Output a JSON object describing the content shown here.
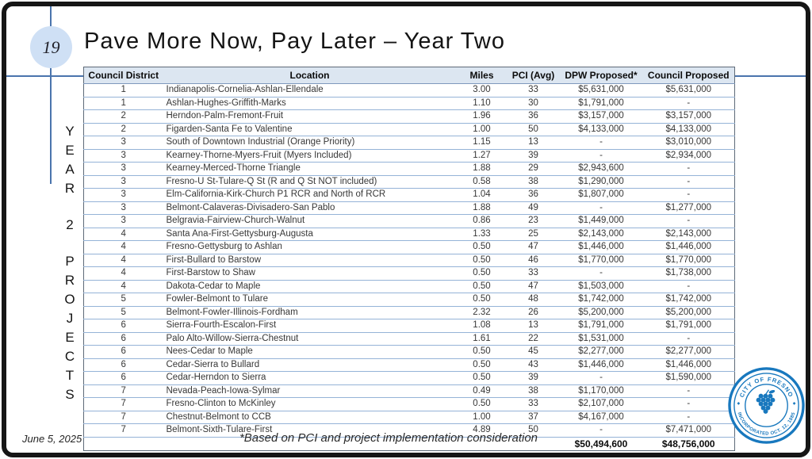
{
  "slide": {
    "page_number": "19",
    "title": "Pave More Now, Pay Later – Year Two",
    "side_label": "YEAR 2 PROJECTS",
    "side_letters": [
      "Y",
      "E",
      "A",
      "R",
      " ",
      "2",
      " ",
      "P",
      "R",
      "O",
      "J",
      "E",
      "C",
      "T",
      "S"
    ],
    "date": "June 5, 2025",
    "footnote": "*Based on PCI and project implementation consideration"
  },
  "table": {
    "columns": [
      "Council District",
      "Location",
      "Miles",
      "PCI (Avg)",
      "DPW Proposed*",
      "Council Proposed"
    ],
    "rows": [
      [
        "1",
        "Indianapolis-Cornelia-Ashlan-Ellendale",
        "3.00",
        "33",
        "$5,631,000",
        "$5,631,000"
      ],
      [
        "1",
        "Ashlan-Hughes-Griffith-Marks",
        "1.10",
        "30",
        "$1,791,000",
        "-"
      ],
      [
        "2",
        "Herndon-Palm-Fremont-Fruit",
        "1.96",
        "36",
        "$3,157,000",
        "$3,157,000"
      ],
      [
        "2",
        "Figarden-Santa Fe to Valentine",
        "1.00",
        "50",
        "$4,133,000",
        "$4,133,000"
      ],
      [
        "3",
        "South of Downtown Industrial (Orange Priority)",
        "1.15",
        "13",
        "-",
        "$3,010,000"
      ],
      [
        "3",
        "Kearney-Thorne-Myers-Fruit (Myers Included)",
        "1.27",
        "39",
        "-",
        "$2,934,000"
      ],
      [
        "3",
        "Kearney-Merced-Thorne Triangle",
        "1.88",
        "29",
        "$2,943,600",
        "-"
      ],
      [
        "3",
        "Fresno-U St-Tulare-Q St (R and Q St NOT included)",
        "0.58",
        "38",
        "$1,290,000",
        "-"
      ],
      [
        "3",
        "Elm-California-Kirk-Church P1 RCR and North of RCR",
        "1.04",
        "36",
        "$1,807,000",
        "-"
      ],
      [
        "3",
        "Belmont-Calaveras-Divisadero-San Pablo",
        "1.88",
        "49",
        "-",
        "$1,277,000"
      ],
      [
        "3",
        "Belgravia-Fairview-Church-Walnut",
        "0.86",
        "23",
        "$1,449,000",
        "-"
      ],
      [
        "4",
        "Santa Ana-First-Gettysburg-Augusta",
        "1.33",
        "25",
        "$2,143,000",
        "$2,143,000"
      ],
      [
        "4",
        "Fresno-Gettysburg to Ashlan",
        "0.50",
        "47",
        "$1,446,000",
        "$1,446,000"
      ],
      [
        "4",
        "First-Bullard to Barstow",
        "0.50",
        "46",
        "$1,770,000",
        "$1,770,000"
      ],
      [
        "4",
        "First-Barstow to Shaw",
        "0.50",
        "33",
        "-",
        "$1,738,000"
      ],
      [
        "4",
        "Dakota-Cedar to Maple",
        "0.50",
        "47",
        "$1,503,000",
        "-"
      ],
      [
        "5",
        "Fowler-Belmont to Tulare",
        "0.50",
        "48",
        "$1,742,000",
        "$1,742,000"
      ],
      [
        "5",
        "Belmont-Fowler-Illinois-Fordham",
        "2.32",
        "26",
        "$5,200,000",
        "$5,200,000"
      ],
      [
        "6",
        "Sierra-Fourth-Escalon-First",
        "1.08",
        "13",
        "$1,791,000",
        "$1,791,000"
      ],
      [
        "6",
        "Palo Alto-Willow-Sierra-Chestnut",
        "1.61",
        "22",
        "$1,531,000",
        "-"
      ],
      [
        "6",
        "Nees-Cedar to Maple",
        "0.50",
        "45",
        "$2,277,000",
        "$2,277,000"
      ],
      [
        "6",
        "Cedar-Sierra to Bullard",
        "0.50",
        "43",
        "$1,446,000",
        "$1,446,000"
      ],
      [
        "6",
        "Cedar-Herndon to Sierra",
        "0.50",
        "39",
        "-",
        "$1,590,000"
      ],
      [
        "7",
        "Nevada-Peach-Iowa-Sylmar",
        "0.49",
        "38",
        "$1,170,000",
        "-"
      ],
      [
        "7",
        "Fresno-Clinton to McKinley",
        "0.50",
        "33",
        "$2,107,000",
        "-"
      ],
      [
        "7",
        "Chestnut-Belmont to CCB",
        "1.00",
        "37",
        "$4,167,000",
        "-"
      ],
      [
        "7",
        "Belmont-Sixth-Tulare-First",
        "4.89",
        "50",
        "-",
        "$7,471,000"
      ]
    ],
    "totals": {
      "dpw": "$50,494,600",
      "council": "$48,756,000"
    }
  },
  "seal": {
    "arc_top": "CITY OF FRESNO",
    "arc_bottom": "INCORPORATED OCT. 12, 1885",
    "separator_glyph": "◆"
  },
  "colors": {
    "accent_blue": "#4a74ad",
    "row_line_blue": "#95b3d7",
    "header_bg": "#dce6f1",
    "badge_bg": "#cfe0f5",
    "seal_blue": "#1878be"
  }
}
